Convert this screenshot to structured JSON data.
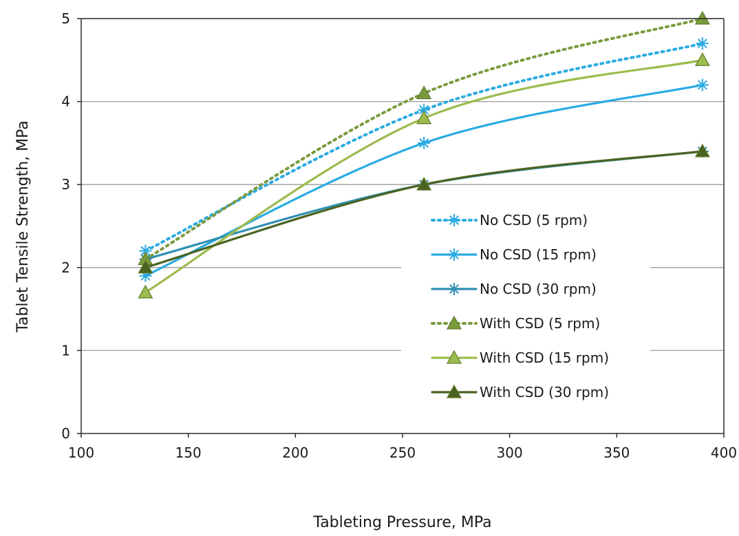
{
  "chart_data": {
    "type": "line",
    "title": "",
    "xlabel": "Tableting Pressure, MPa",
    "ylabel": "Tablet Tensile Strength, MPa",
    "xlim": [
      100,
      400
    ],
    "ylim": [
      0,
      5
    ],
    "x_ticks": [
      100,
      150,
      200,
      250,
      300,
      350,
      400
    ],
    "y_ticks": [
      0,
      1,
      2,
      3,
      4,
      5
    ],
    "x_tick_labels": [
      "100",
      "150",
      "200",
      "250",
      "300",
      "350",
      "400"
    ],
    "y_tick_labels": [
      "0",
      "1",
      "2",
      "3",
      "4",
      "5"
    ],
    "grid": "horizontal",
    "legend_position": "center-right",
    "x": [
      130,
      260,
      390
    ],
    "series": [
      {
        "name": "No CSD (5 rpm)",
        "values": [
          2.2,
          3.9,
          4.7
        ],
        "color": "#29abe2",
        "dash": "dotted",
        "marker": "asterisk"
      },
      {
        "name": "No CSD (15 rpm)",
        "values": [
          1.9,
          3.5,
          4.2
        ],
        "color": "#29abe2",
        "dash": "solid",
        "marker": "asterisk"
      },
      {
        "name": "No CSD (30 rpm)",
        "values": [
          2.1,
          3.0,
          3.4
        ],
        "color": "#2e8fb2",
        "dash": "solid",
        "marker": "asterisk"
      },
      {
        "name": "With CSD (5 rpm)",
        "values": [
          2.1,
          4.1,
          5.0
        ],
        "color": "#7a9a3c",
        "dash": "dotted",
        "marker": "triangle"
      },
      {
        "name": "With CSD (15 rpm)",
        "values": [
          1.7,
          3.8,
          4.5
        ],
        "color": "#9cbb4e",
        "dash": "solid",
        "marker": "triangle"
      },
      {
        "name": "With CSD (30 rpm)",
        "values": [
          2.0,
          3.0,
          3.4
        ],
        "color": "#4b6321",
        "dash": "solid",
        "marker": "triangle"
      }
    ]
  }
}
